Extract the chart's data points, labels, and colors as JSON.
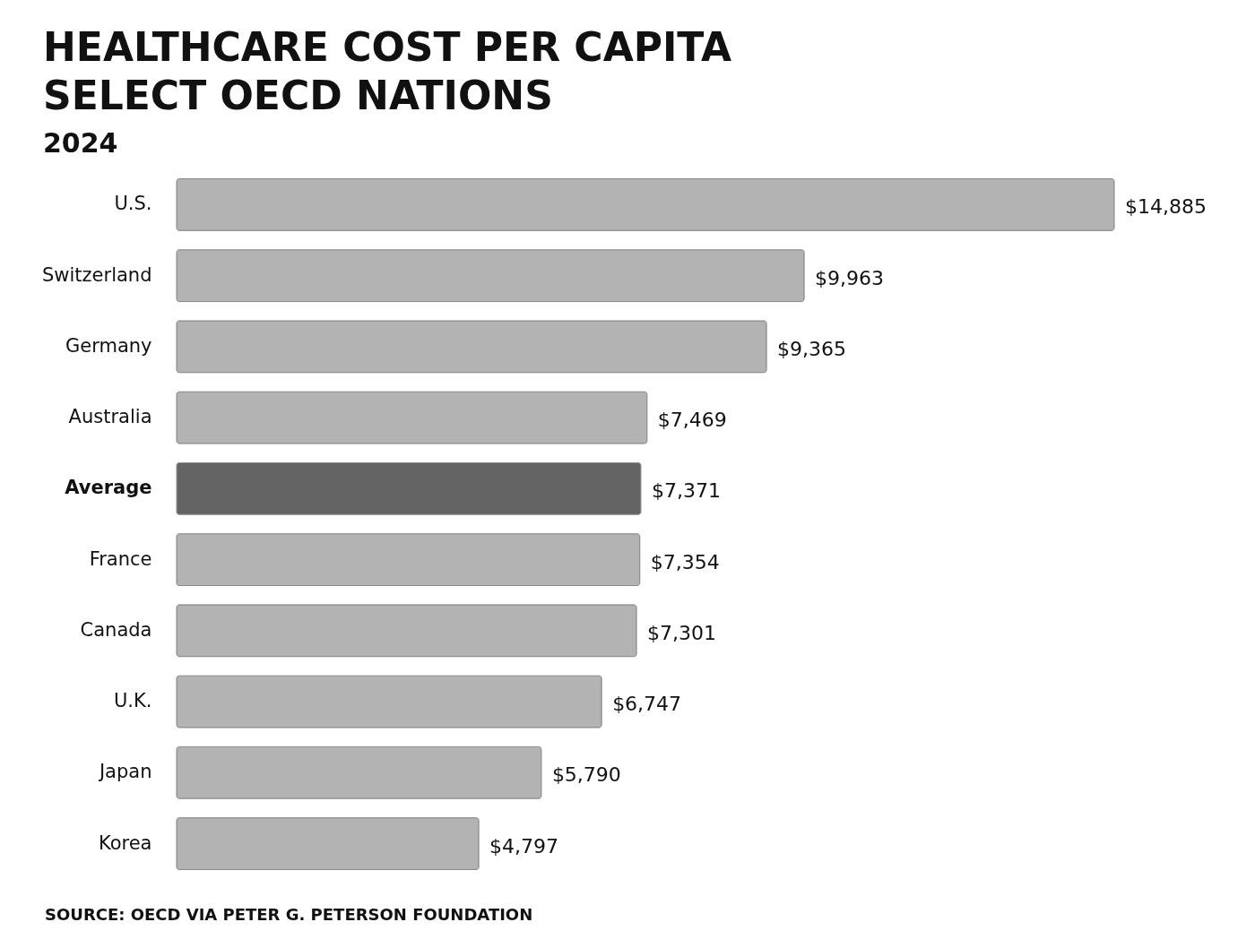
{
  "chart_data": {
    "type": "bar",
    "orientation": "horizontal",
    "title": "HEALTHCARE COST PER CAPITA\nSELECT OECD NATIONS",
    "subtitle": "2024",
    "categories": [
      "U.S.",
      "Switzerland",
      "Germany",
      "Australia",
      "Average",
      "France",
      "Canada",
      "U.K.",
      "Japan",
      "Korea"
    ],
    "values": [
      14885,
      9963,
      9365,
      7469,
      7371,
      7354,
      7301,
      6747,
      5790,
      4797
    ],
    "value_labels": [
      "$14,885",
      "$9,963",
      "$9,365",
      "$7,469",
      "$7,371",
      "$7,354",
      "$7,301",
      "$6,747",
      "$5,790",
      "$4,797"
    ],
    "colors": [
      "#b4b3b4",
      "#b4b3b4",
      "#b4b3b4",
      "#b4b3b4",
      "#646464",
      "#b4b3b4",
      "#b4b3b4",
      "#b4b3b4",
      "#b4b3b4",
      "#b4b3b4"
    ],
    "annotations": [
      "SOURCE: OECD VIA PETER G. PETERSON FOUNDATION"
    ],
    "grid": false,
    "legend": false
  }
}
